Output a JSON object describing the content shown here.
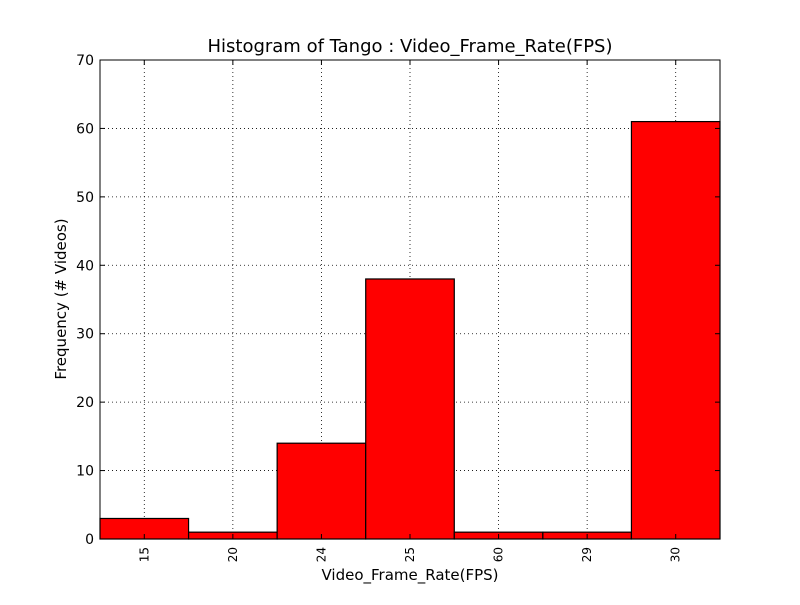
{
  "chart_data": {
    "type": "bar",
    "title": "Histogram of Tango : Video_Frame_Rate(FPS)",
    "xlabel": "Video_Frame_Rate(FPS)",
    "ylabel": "Frequency (# Videos)",
    "categories": [
      "15",
      "20",
      "24",
      "25",
      "60",
      "29",
      "30"
    ],
    "values": [
      3,
      1,
      14,
      38,
      1,
      1,
      61
    ],
    "ylim": [
      0,
      70
    ],
    "yticks": [
      "0",
      "10",
      "20",
      "30",
      "40",
      "50",
      "60",
      "70"
    ],
    "grid": true,
    "bar_color": "#ff0000",
    "edge_color": "#000000"
  }
}
